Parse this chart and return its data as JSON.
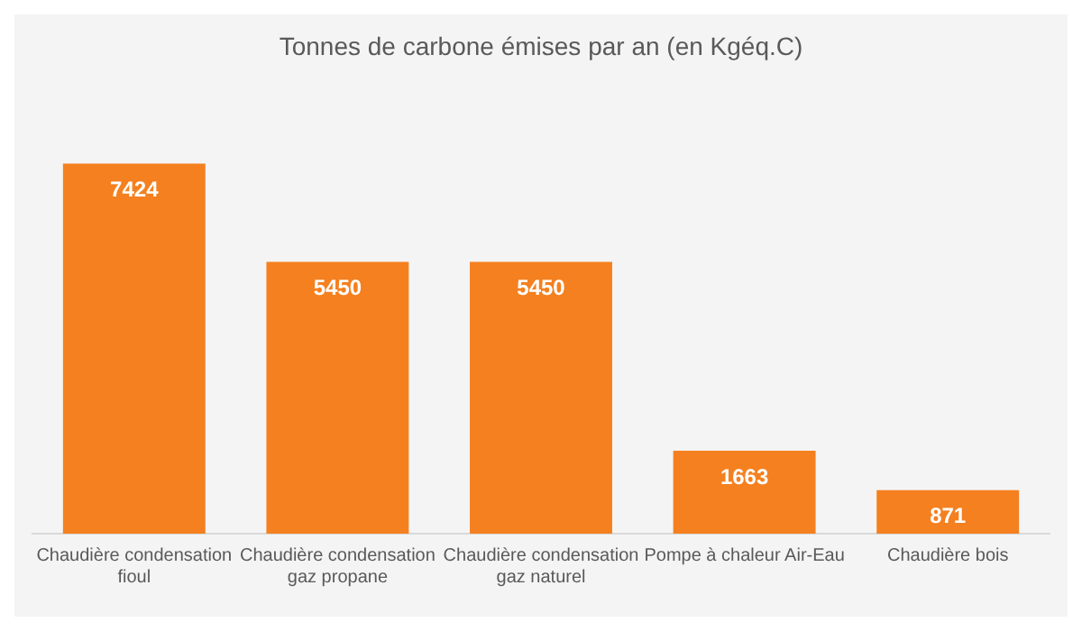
{
  "chart_data": {
    "type": "bar",
    "title": "Tonnes de carbone émises par an (en Kgéq.C)",
    "categories": [
      "Chaudière condensation fioul",
      "Chaudière condensation gaz propane",
      "Chaudière condensation gaz naturel",
      "Pompe à chaleur Air-Eau",
      "Chaudière bois"
    ],
    "values": [
      7424,
      5450,
      5450,
      1663,
      871
    ],
    "color": "#f5801f",
    "data_labels": true,
    "grid": false,
    "legend": false
  }
}
